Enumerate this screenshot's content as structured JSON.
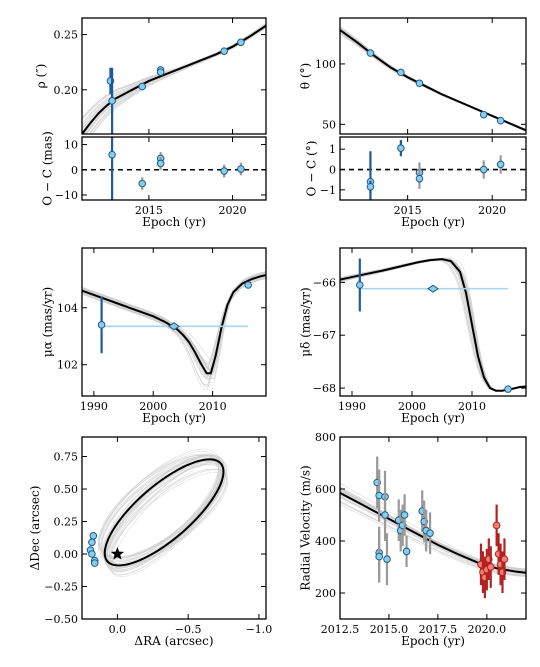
{
  "figure": {
    "colors": {
      "model": "#000000",
      "posterior": "#cccccc",
      "point_fill": "#87ceeb",
      "point_edge": "#1f5a8c",
      "errbar_dark": "#1f5a9c",
      "errbar_gray": "#999999",
      "line_light": "#a8d4ee",
      "rv_red_fill": "#f08070",
      "rv_red_edge": "#b22222"
    }
  },
  "chart_data": [
    {
      "id": "rho",
      "type": "line",
      "xlabel": "",
      "ylabel": "ρ (″)",
      "xlim": [
        2011.0,
        2022.0
      ],
      "ylim": [
        0.16,
        0.265
      ],
      "xticks": [
        2015,
        2020
      ],
      "xtick_labels": [
        "",
        ""
      ],
      "yticks": [
        0.2,
        0.25
      ],
      "ytick_labels": [
        "0.20",
        "0.25"
      ],
      "model": {
        "x": [
          2011.0,
          2011.5,
          2012.0,
          2012.5,
          2013.0,
          2013.5,
          2014.0,
          2015.0,
          2016.0,
          2017.0,
          2018.0,
          2019.0,
          2020.0,
          2021.0,
          2022.0
        ],
        "y": [
          0.16,
          0.17,
          0.179,
          0.186,
          0.192,
          0.196,
          0.2,
          0.208,
          0.214,
          0.22,
          0.226,
          0.232,
          0.239,
          0.248,
          0.258
        ]
      },
      "points": [
        {
          "x": 2012.7,
          "y": 0.208,
          "err": 0.012,
          "bar": "dark"
        },
        {
          "x": 2012.8,
          "y": 0.19,
          "err": 0.03,
          "bar": "dark"
        },
        {
          "x": 2014.6,
          "y": 0.203,
          "err": 0.002,
          "bar": "gray"
        },
        {
          "x": 2015.7,
          "y": 0.218,
          "err": 0.003,
          "bar": "gray"
        },
        {
          "x": 2015.7,
          "y": 0.216,
          "err": 0.003,
          "bar": "gray"
        },
        {
          "x": 2019.5,
          "y": 0.235,
          "err": 0.002,
          "bar": "gray"
        },
        {
          "x": 2020.5,
          "y": 0.243,
          "err": 0.002,
          "bar": "gray"
        }
      ]
    },
    {
      "id": "rho_res",
      "type": "scatter",
      "xlabel": "Epoch (yr)",
      "ylabel": "O − C (mas)",
      "xlim": [
        2011.0,
        2022.0
      ],
      "ylim": [
        -12,
        13
      ],
      "xticks": [
        2015,
        2020
      ],
      "xtick_labels": [
        "2015",
        "2020"
      ],
      "yticks": [
        -10,
        0,
        10
      ],
      "ytick_labels": [
        "−10",
        "0",
        "10"
      ],
      "zero_line": true,
      "points": [
        {
          "x": 2012.8,
          "y": 6.0,
          "err": 18.0,
          "bar": "dark"
        },
        {
          "x": 2014.6,
          "y": -5.5,
          "err": 2.5,
          "bar": "gray"
        },
        {
          "x": 2015.7,
          "y": 4.5,
          "err": 2.5,
          "bar": "gray"
        },
        {
          "x": 2015.7,
          "y": 2.5,
          "err": 2.5,
          "bar": "gray"
        },
        {
          "x": 2019.5,
          "y": -0.5,
          "err": 2.5,
          "bar": "gray"
        },
        {
          "x": 2020.5,
          "y": 0.3,
          "err": 2.5,
          "bar": "gray"
        }
      ]
    },
    {
      "id": "theta",
      "type": "line",
      "xlabel": "",
      "ylabel": "θ (°)",
      "xlim": [
        2011.0,
        2022.0
      ],
      "ylim": [
        42,
        138
      ],
      "xticks": [
        2015,
        2020
      ],
      "xtick_labels": [
        "",
        ""
      ],
      "yticks": [
        50,
        100
      ],
      "ytick_labels": [
        "50",
        "100"
      ],
      "model": {
        "x": [
          2011.0,
          2012.0,
          2013.0,
          2014.0,
          2015.0,
          2016.0,
          2017.0,
          2018.0,
          2019.0,
          2020.0,
          2021.0,
          2022.0
        ],
        "y": [
          128,
          118,
          107,
          97,
          89,
          82,
          75,
          69,
          63,
          57,
          51,
          45
        ]
      },
      "points": [
        {
          "x": 2012.8,
          "y": 109,
          "err": 2,
          "bar": "gray"
        },
        {
          "x": 2014.6,
          "y": 93,
          "err": 1,
          "bar": "gray"
        },
        {
          "x": 2015.7,
          "y": 84,
          "err": 1,
          "bar": "gray"
        },
        {
          "x": 2019.5,
          "y": 58,
          "err": 1,
          "bar": "gray"
        },
        {
          "x": 2020.5,
          "y": 53,
          "err": 1,
          "bar": "gray"
        }
      ]
    },
    {
      "id": "theta_res",
      "type": "scatter",
      "xlabel": "Epoch (yr)",
      "ylabel": "O − C (°)",
      "xlim": [
        2011.0,
        2022.0
      ],
      "ylim": [
        -1.5,
        1.6
      ],
      "xticks": [
        2015,
        2020
      ],
      "xtick_labels": [
        "2015",
        "2020"
      ],
      "yticks": [
        -1,
        0,
        1
      ],
      "ytick_labels": [
        "−1",
        "0",
        "1"
      ],
      "zero_line": true,
      "points": [
        {
          "x": 2012.8,
          "y": -0.6,
          "err": 1.5,
          "bar": "dark"
        },
        {
          "x": 2012.8,
          "y": -0.85,
          "err": 0.3,
          "bar": "dark"
        },
        {
          "x": 2014.6,
          "y": 1.05,
          "err": 0.4,
          "bar": "dark"
        },
        {
          "x": 2015.7,
          "y": -0.15,
          "err": 0.5,
          "bar": "gray"
        },
        {
          "x": 2015.7,
          "y": -0.45,
          "err": 0.5,
          "bar": "gray"
        },
        {
          "x": 2019.5,
          "y": 0.0,
          "err": 0.45,
          "bar": "gray"
        },
        {
          "x": 2020.5,
          "y": 0.25,
          "err": 0.45,
          "bar": "gray"
        }
      ]
    },
    {
      "id": "mualpha",
      "type": "line",
      "xlabel": "Epoch (yr)",
      "ylabel": "μα (mas/yr)",
      "xlim": [
        1988.0,
        2019.0
      ],
      "ylim": [
        100.9,
        106.1
      ],
      "xticks": [
        1990,
        2000,
        2010
      ],
      "xtick_labels": [
        "1990",
        "2000",
        "2010"
      ],
      "yticks": [
        102,
        104
      ],
      "ytick_labels": [
        "102",
        "104"
      ],
      "model": {
        "x": [
          1988,
          1990,
          1992,
          1994,
          1996,
          1998,
          2000,
          2002,
          2004,
          2005,
          2006,
          2007,
          2008,
          2009,
          2009.7,
          2010.5,
          2011.5,
          2012.5,
          2013.5,
          2015,
          2016.5,
          2018,
          2019
        ],
        "y": [
          104.6,
          104.45,
          104.3,
          104.15,
          104.0,
          103.85,
          103.7,
          103.5,
          103.25,
          103.05,
          102.8,
          102.45,
          102.05,
          101.7,
          101.7,
          102.3,
          103.3,
          104.1,
          104.55,
          104.85,
          105.0,
          105.1,
          105.15
        ]
      },
      "points": [
        {
          "x": 1991.3,
          "y": 103.4,
          "err": 1.0,
          "bar": "dark"
        },
        {
          "x": 2016.0,
          "y": 104.8,
          "err": 0.05,
          "bar": "dark"
        }
      ],
      "span": {
        "x0": 1991.3,
        "x1": 2016.0,
        "y": 103.35
      },
      "diamond": {
        "x": 2003.5,
        "y": 103.35
      }
    },
    {
      "id": "mudelta",
      "type": "line",
      "xlabel": "Epoch (yr)",
      "ylabel": "μδ (mas/yr)",
      "xlim": [
        1988.0,
        2019.0
      ],
      "ylim": [
        -68.15,
        -65.35
      ],
      "xticks": [
        1990,
        2000,
        2010
      ],
      "xtick_labels": [
        "1990",
        "2000",
        "2010"
      ],
      "yticks": [
        -68,
        -67,
        -66
      ],
      "ytick_labels": [
        "−68",
        "−67",
        "−66"
      ],
      "model": {
        "x": [
          1988,
          1990,
          1992,
          1995,
          1998,
          2001,
          2003,
          2005,
          2006.5,
          2008,
          2009,
          2010,
          2011,
          2012,
          2013,
          2014,
          2015,
          2016.5,
          2018,
          2019
        ],
        "y": [
          -65.95,
          -65.9,
          -65.85,
          -65.78,
          -65.7,
          -65.62,
          -65.58,
          -65.56,
          -65.6,
          -65.8,
          -66.2,
          -66.8,
          -67.4,
          -67.8,
          -68.0,
          -68.05,
          -68.05,
          -68.02,
          -67.98,
          -67.97
        ]
      },
      "points": [
        {
          "x": 1991.3,
          "y": -66.05,
          "err": 0.5,
          "bar": "dark"
        },
        {
          "x": 2016.0,
          "y": -68.02,
          "err": 0.03,
          "bar": "dark"
        }
      ],
      "span": {
        "x0": 1991.3,
        "x1": 2016.0,
        "y": -66.12
      },
      "diamond": {
        "x": 2003.5,
        "y": -66.12
      }
    },
    {
      "id": "orbit",
      "type": "scatter",
      "xlabel": "ΔRA (arcsec)",
      "ylabel": "ΔDec (arcsec)",
      "xlim": [
        0.25,
        -1.05
      ],
      "ylim": [
        -0.5,
        0.9
      ],
      "xticks": [
        0.0,
        -0.5,
        -1.0
      ],
      "xtick_labels": [
        "0.0",
        "−0.5",
        "−1.0"
      ],
      "yticks": [
        -0.5,
        -0.25,
        0.0,
        0.25,
        0.5,
        0.75
      ],
      "ytick_labels": [
        "−0.50",
        "−0.25",
        "0.00",
        "0.25",
        "0.50",
        "0.75"
      ],
      "ellipse": {
        "cx": -0.33,
        "cy": 0.32,
        "a": 0.55,
        "b": 0.2,
        "angle_deg": 44
      },
      "star": {
        "x": 0.0,
        "y": 0.0
      },
      "points": [
        {
          "x": 0.19,
          "y": 0.03
        },
        {
          "x": 0.18,
          "y": 0.09
        },
        {
          "x": 0.17,
          "y": 0.14
        },
        {
          "x": 0.18,
          "y": 0.0
        },
        {
          "x": 0.16,
          "y": -0.05
        },
        {
          "x": 0.16,
          "y": -0.07
        }
      ]
    },
    {
      "id": "rv",
      "type": "scatter",
      "xlabel": "Epoch (yr)",
      "ylabel": "Radial Velocity (m/s)",
      "xlim": [
        2012.5,
        2022.0
      ],
      "ylim": [
        100,
        800
      ],
      "xticks": [
        2012.5,
        2015.0,
        2017.5,
        2020.0
      ],
      "xtick_labels": [
        "2012.5",
        "2015.0",
        "2017.5",
        "2020.0"
      ],
      "yticks": [
        200,
        400,
        600,
        800
      ],
      "ytick_labels": [
        "200",
        "400",
        "600",
        "800"
      ],
      "model": {
        "x": [
          2012.5,
          2013.5,
          2014.5,
          2015.5,
          2016.5,
          2017.5,
          2018.5,
          2019.5,
          2020.5,
          2021.5,
          2022.0
        ],
        "y": [
          585,
          545,
          505,
          465,
          425,
          385,
          350,
          318,
          295,
          282,
          278
        ]
      },
      "blue": [
        {
          "x": 2014.4,
          "y": 625,
          "err": 100
        },
        {
          "x": 2014.5,
          "y": 575,
          "err": 100
        },
        {
          "x": 2014.5,
          "y": 355,
          "err": 100
        },
        {
          "x": 2014.5,
          "y": 340,
          "err": 100
        },
        {
          "x": 2014.8,
          "y": 570,
          "err": 100
        },
        {
          "x": 2014.8,
          "y": 500,
          "err": 100
        },
        {
          "x": 2014.9,
          "y": 330,
          "err": 100
        },
        {
          "x": 2015.5,
          "y": 480,
          "err": 80
        },
        {
          "x": 2015.6,
          "y": 440,
          "err": 80
        },
        {
          "x": 2015.7,
          "y": 460,
          "err": 80
        },
        {
          "x": 2015.8,
          "y": 500,
          "err": 80
        },
        {
          "x": 2015.9,
          "y": 360,
          "err": 60
        },
        {
          "x": 2016.7,
          "y": 515,
          "err": 80
        },
        {
          "x": 2016.8,
          "y": 475,
          "err": 80
        },
        {
          "x": 2016.9,
          "y": 440,
          "err": 80
        },
        {
          "x": 2017.1,
          "y": 430,
          "err": 80
        }
      ],
      "red": [
        {
          "x": 2019.7,
          "y": 310,
          "err": 80
        },
        {
          "x": 2019.8,
          "y": 280,
          "err": 80
        },
        {
          "x": 2019.9,
          "y": 260,
          "err": 80
        },
        {
          "x": 2020.0,
          "y": 290,
          "err": 80
        },
        {
          "x": 2020.1,
          "y": 330,
          "err": 80
        },
        {
          "x": 2020.2,
          "y": 300,
          "err": 80
        },
        {
          "x": 2020.5,
          "y": 460,
          "err": 80
        },
        {
          "x": 2020.6,
          "y": 350,
          "err": 80
        },
        {
          "x": 2020.7,
          "y": 310,
          "err": 80
        },
        {
          "x": 2020.8,
          "y": 280,
          "err": 80
        },
        {
          "x": 2020.9,
          "y": 330,
          "err": 80
        }
      ]
    }
  ]
}
